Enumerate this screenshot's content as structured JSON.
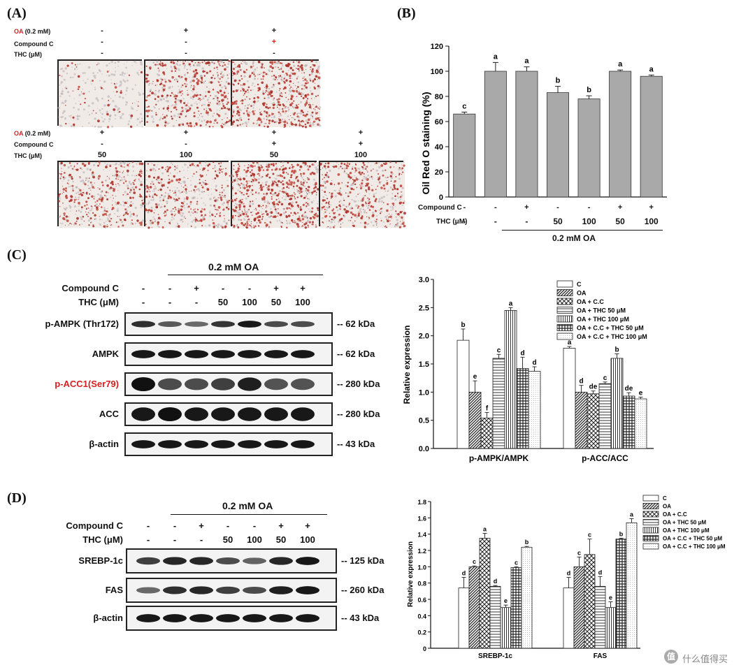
{
  "panelA": {
    "label": "(A)",
    "top_conditions": {
      "oa_label": "OA",
      "oa_conc": "(0.2 mM)",
      "cc_label": "Compound C",
      "thc_label": "THC (μM)",
      "oa": [
        "-",
        "+",
        "+"
      ],
      "cc": [
        "-",
        "-",
        "+"
      ],
      "thc": [
        "-",
        "-",
        "-"
      ]
    },
    "bottom_conditions": {
      "oa_label": "OA",
      "oa_conc": "(0.2 mM)",
      "cc_label": "Compound C",
      "thc_label": "THC (μM)",
      "oa": [
        "+",
        "+",
        "+",
        "+"
      ],
      "cc": [
        "-",
        "-",
        "+",
        "+"
      ],
      "thc": [
        "50",
        "100",
        "50",
        "100"
      ]
    },
    "stain_density": [
      0.08,
      0.55,
      0.75,
      0.5,
      0.45,
      0.85,
      0.55
    ]
  },
  "panelB": {
    "label": "(B)",
    "ylabel": "Oil Red O staining (%)",
    "yticks": [
      "0",
      "20",
      "40",
      "60",
      "80",
      "100",
      "120"
    ],
    "row1_label": "Compound C",
    "row2_label": "THC (μM)",
    "row1": [
      "-",
      "-",
      "+",
      "-",
      "-",
      "+",
      "+"
    ],
    "row2": [
      "-",
      "-",
      "-",
      "50",
      "100",
      "50",
      "100"
    ],
    "bracket_label": "0.2 mM OA"
  },
  "panelC": {
    "label": "(C)",
    "oa_header": "0.2 mM OA",
    "cc_row_label": "Compound C",
    "thc_row_label": "THC (μM)",
    "cc": [
      "-",
      "-",
      "+",
      "-",
      "-",
      "+",
      "+"
    ],
    "thc": [
      "-",
      "-",
      "-",
      "50",
      "100",
      "50",
      "100"
    ],
    "blots": [
      {
        "name": "p-AMPK (Thr172)",
        "kda": "-- 62 kDa",
        "red": false
      },
      {
        "name": "AMPK",
        "kda": "-- 62 kDa",
        "red": false
      },
      {
        "name": "p-ACC1(Ser79)",
        "kda": "-- 280 kDa",
        "red": true
      },
      {
        "name": "ACC",
        "kda": "-- 280 kDa",
        "red": false
      },
      {
        "name": "β-actin",
        "kda": "-- 43 kDa",
        "red": false
      }
    ],
    "ylabel": "Relative expression",
    "yticks": [
      "0.0",
      "0.5",
      "1.0",
      "1.5",
      "2.0",
      "2.5",
      "3.0"
    ],
    "legend": [
      "C",
      "OA",
      "OA + C.C",
      "OA + THC 50 μM",
      "OA + THC 100 μM",
      "OA + C.C + THC 50 μM",
      "OA + C.C + THC 100 μM"
    ]
  },
  "panelD": {
    "label": "(D)",
    "oa_header": "0.2 mM OA",
    "cc_row_label": "Compound C",
    "thc_row_label": "THC (μM)",
    "cc": [
      "-",
      "-",
      "+",
      "-",
      "-",
      "+",
      "+"
    ],
    "thc": [
      "-",
      "-",
      "-",
      "50",
      "100",
      "50",
      "100"
    ],
    "blots": [
      {
        "name": "SREBP-1c",
        "kda": "-- 125 kDa"
      },
      {
        "name": "FAS",
        "kda": "-- 260 kDa"
      },
      {
        "name": "β-actin",
        "kda": "-- 43 kDa"
      }
    ],
    "ylabel": "Relative expression",
    "yticks": [
      "0",
      "0.2",
      "0.4",
      "0.6",
      "0.8",
      "1.0",
      "1.2",
      "1.4",
      "1.6",
      "1.8"
    ],
    "legend": [
      "C",
      "OA",
      "OA + C.C",
      "OA + THC 50 μM",
      "OA + THC 100 μM",
      "OA + C.C + THC 50 μM",
      "OA + C.C + THC 100 μM"
    ]
  },
  "chart_data": [
    {
      "type": "bar",
      "ylabel": "Oil Red O staining (%)",
      "ylim": [
        0,
        120
      ],
      "categories": [
        "-/-",
        "-/-",
        "+/-",
        "-/50",
        "-/100",
        "+/50",
        "+/100"
      ],
      "values": [
        66,
        100,
        100,
        83,
        78,
        100,
        96
      ],
      "errors": [
        1.5,
        7,
        3.5,
        5,
        2.5,
        1,
        1
      ],
      "letters": [
        "c",
        "a",
        "a",
        "b",
        "b",
        "a",
        "a"
      ],
      "fill": "#a9a9a9"
    },
    {
      "type": "bar",
      "ylabel": "Relative expression",
      "ylim": [
        0,
        3.0
      ],
      "categories": [
        "p-AMPK/AMPK",
        "p-ACC/ACC"
      ],
      "series": [
        {
          "name": "C",
          "values": [
            1.92,
            1.78
          ],
          "errors": [
            0.2,
            0.03
          ],
          "letters": [
            "b",
            "a"
          ],
          "pattern": "white"
        },
        {
          "name": "OA",
          "values": [
            1.0,
            1.0
          ],
          "errors": [
            0.2,
            0.12
          ],
          "letters": [
            "e",
            "d"
          ],
          "pattern": "diagdense"
        },
        {
          "name": "OA + C.C",
          "values": [
            0.54,
            0.97
          ],
          "errors": [
            0.1,
            0.05
          ],
          "letters": [
            "f",
            "de"
          ],
          "pattern": "check"
        },
        {
          "name": "OA + THC 50 μM",
          "values": [
            1.6,
            1.15
          ],
          "errors": [
            0.07,
            0.03
          ],
          "letters": [
            "c",
            "c"
          ],
          "pattern": "hlines"
        },
        {
          "name": "OA + THC 100 μM",
          "values": [
            2.45,
            1.6
          ],
          "errors": [
            0.05,
            0.08
          ],
          "letters": [
            "a",
            "b"
          ],
          "pattern": "vlines"
        },
        {
          "name": "OA + C.C + THC 50 μM",
          "values": [
            1.42,
            0.93
          ],
          "errors": [
            0.2,
            0.06
          ],
          "letters": [
            "d",
            "de"
          ],
          "pattern": "grid"
        },
        {
          "name": "OA + C.C + THC 100 μM",
          "values": [
            1.37,
            0.88
          ],
          "errors": [
            0.08,
            0.03
          ],
          "letters": [
            "d",
            "e"
          ],
          "pattern": "dots"
        }
      ]
    },
    {
      "type": "bar",
      "ylabel": "Relative expression",
      "ylim": [
        0,
        1.8
      ],
      "categories": [
        "SREBP-1c",
        "FAS"
      ],
      "series": [
        {
          "name": "C",
          "values": [
            0.74,
            0.74
          ],
          "errors": [
            0.13,
            0.13
          ],
          "letters": [
            "d",
            "d"
          ],
          "pattern": "white"
        },
        {
          "name": "OA",
          "values": [
            1.0,
            1.0
          ],
          "errors": [
            0.01,
            0.12
          ],
          "letters": [
            "c",
            "c"
          ],
          "pattern": "diagdense"
        },
        {
          "name": "OA + C.C",
          "values": [
            1.35,
            1.15
          ],
          "errors": [
            0.06,
            0.19
          ],
          "letters": [
            "a",
            "c"
          ],
          "pattern": "check"
        },
        {
          "name": "OA + THC 50 μM",
          "values": [
            0.76,
            0.76
          ],
          "errors": [
            0.01,
            0.12
          ],
          "letters": [
            "d",
            "d"
          ],
          "pattern": "hlines"
        },
        {
          "name": "OA + THC 100 μM",
          "values": [
            0.5,
            0.5
          ],
          "errors": [
            0.03,
            0.07
          ],
          "letters": [
            "e",
            "e"
          ],
          "pattern": "vlines"
        },
        {
          "name": "OA + C.C + THC 50 μM",
          "values": [
            0.99,
            1.34
          ],
          "errors": [
            0.01,
            0.01
          ],
          "letters": [
            "c",
            "b"
          ],
          "pattern": "grid"
        },
        {
          "name": "OA + C.C + THC 100 μM",
          "values": [
            1.24,
            1.54
          ],
          "errors": [
            0.01,
            0.05
          ],
          "letters": [
            "b",
            "a"
          ],
          "pattern": "dots"
        }
      ]
    }
  ],
  "watermark": {
    "icon": "zhi-logo-icon",
    "text": "什么值得买"
  }
}
